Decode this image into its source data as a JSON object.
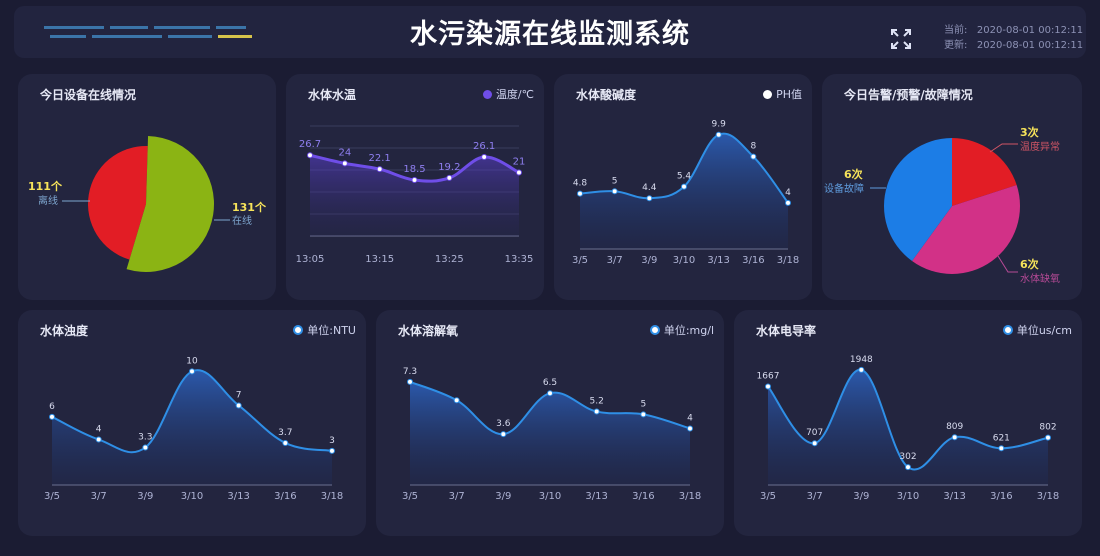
{
  "header": {
    "title": "水污染源在线监测系统",
    "time_label_1": "当前:",
    "time_value_1": "2020-08-01 00:12:11",
    "time_label_2": "更新:",
    "time_value_2": "2020-08-01 00:12:11",
    "fullscreen_icon": "fullscreen-icon"
  },
  "colors": {
    "background": "#1b1c33",
    "panel": "#23253f",
    "line_blue": "#2f8fe6",
    "line_purple": "#6f4ee8",
    "pie_red": "#e21d25",
    "pie_green": "#8bb414",
    "pie_pink": "#d23187",
    "pie_blue": "#1c7de6",
    "label_yellow": "#f6e35a"
  },
  "panels": {
    "online": {
      "title": "今日设备在线情况"
    },
    "temp": {
      "title": "水体水温",
      "legend": "温度/℃"
    },
    "ph": {
      "title": "水体酸碱度",
      "legend": "PH值"
    },
    "alarm": {
      "title": "今日告警/预警/故障情况"
    },
    "turbidity": {
      "title": "水体浊度",
      "legend": "单位:NTU"
    },
    "oxygen": {
      "title": "水体溶解氧",
      "legend": "单位:mg/l"
    },
    "conductivity": {
      "title": "水体电导率",
      "legend": "单位us/cm"
    }
  },
  "chart_data": [
    {
      "id": "online",
      "type": "pie",
      "slices": [
        {
          "label": "离线",
          "value": 111,
          "value_text": "111个",
          "color": "#e21d25"
        },
        {
          "label": "在线",
          "value": 131,
          "value_text": "131个",
          "color": "#8bb414"
        }
      ]
    },
    {
      "id": "temp",
      "type": "line",
      "x_ticks": [
        "13:05",
        "13:15",
        "13:25",
        "13:35"
      ],
      "values": [
        26.7,
        24,
        22.1,
        18.5,
        19.2,
        26.1,
        21
      ],
      "ylim": [
        0,
        40
      ],
      "grid": true
    },
    {
      "id": "ph",
      "type": "area",
      "categories": [
        "3/5",
        "3/7",
        "3/9",
        "3/10",
        "3/13",
        "3/16",
        "3/18"
      ],
      "values": [
        4.8,
        5,
        4.4,
        5.4,
        9.9,
        8,
        4
      ],
      "ylim": [
        0,
        11
      ]
    },
    {
      "id": "alarm",
      "type": "pie",
      "slices": [
        {
          "label": "温度异常",
          "value": 3,
          "value_text": "3次",
          "color": "#e21d25"
        },
        {
          "label": "水体缺氧",
          "value": 6,
          "value_text": "6次",
          "color": "#d23187"
        },
        {
          "label": "设备故障",
          "value": 6,
          "value_text": "6次",
          "color": "#1c7de6"
        }
      ]
    },
    {
      "id": "turbidity",
      "type": "area",
      "categories": [
        "3/5",
        "3/7",
        "3/9",
        "3/10",
        "3/13",
        "3/16",
        "3/18"
      ],
      "values": [
        6,
        4,
        3.3,
        10,
        7,
        3.7,
        3
      ],
      "ylim": [
        0,
        11
      ]
    },
    {
      "id": "oxygen",
      "type": "area",
      "categories": [
        "3/5",
        "3/7",
        "3/9",
        "3/10",
        "3/13",
        "3/16",
        "3/18"
      ],
      "values": [
        7.3,
        6,
        3.6,
        6.5,
        5.2,
        5,
        4
      ],
      "value_labels": [
        "7.3",
        "",
        "3.6",
        "6.5",
        "5.2",
        "5",
        "4"
      ],
      "ylim": [
        0,
        8
      ]
    },
    {
      "id": "conductivity",
      "type": "area",
      "categories": [
        "3/5",
        "3/7",
        "3/9",
        "3/10",
        "3/13",
        "3/16",
        "3/18"
      ],
      "values": [
        1667,
        707,
        1948,
        302,
        809,
        621,
        802
      ],
      "ylim": [
        0,
        2200
      ]
    }
  ]
}
